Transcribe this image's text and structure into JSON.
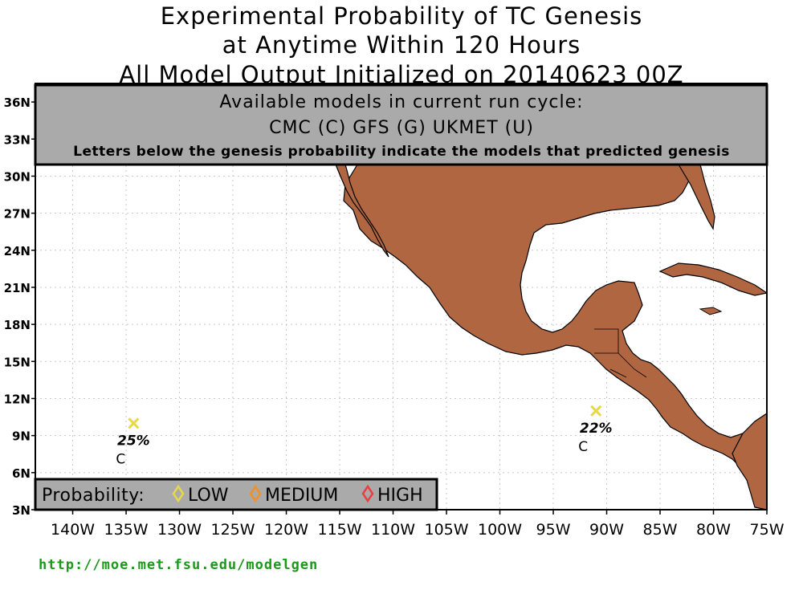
{
  "titles": {
    "line1": "Experimental Probability of TC Genesis",
    "line2": "at Anytime Within 120 Hours",
    "line3": "All Model Output Initialized on 20140623 00Z"
  },
  "models_box": {
    "heading": "Available models in current run cycle:",
    "models": "CMC (C) GFS (G)  UKMET (U)",
    "note": "Letters below the genesis probability indicate the models that predicted genesis"
  },
  "axes": {
    "lat_labels": [
      "36N",
      "33N",
      "30N",
      "27N",
      "24N",
      "21N",
      "18N",
      "15N",
      "12N",
      "9N",
      "6N",
      "3N"
    ],
    "lon_labels": [
      "140W",
      "135W",
      "130W",
      "125W",
      "120W",
      "115W",
      "110W",
      "105W",
      "100W",
      "95W",
      "90W",
      "85W",
      "80W",
      "75W"
    ],
    "lat_range": [
      3,
      37.5
    ],
    "lon_range": [
      -143.5,
      -75
    ]
  },
  "legend": {
    "label": "Probability:",
    "items": [
      {
        "name": "LOW",
        "color": "#e6d84a"
      },
      {
        "name": "MEDIUM",
        "color": "#f0902a"
      },
      {
        "name": "HIGH",
        "color": "#e84040"
      }
    ]
  },
  "genesis_points": [
    {
      "lon": -134.3,
      "lat": 10.0,
      "probability": "25%",
      "models": "C",
      "color": "#e6d84a"
    },
    {
      "lon": -91.0,
      "lat": 11.0,
      "probability": "22%",
      "models": "C",
      "color": "#e6d84a"
    }
  ],
  "colors": {
    "land": "#b06640",
    "box": "#aaaaaa",
    "grid": "#c8c8c8"
  },
  "footer": {
    "url": "http://moe.met.fsu.edu/modelgen"
  }
}
